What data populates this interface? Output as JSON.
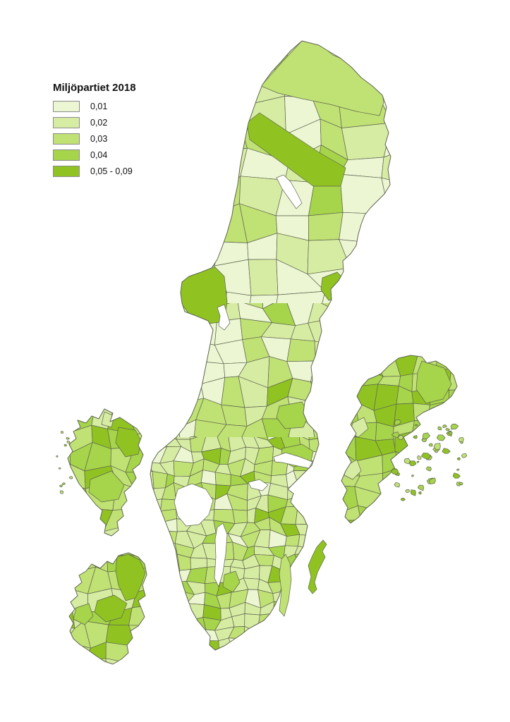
{
  "title": "Miljöpartiet 2018",
  "legend": {
    "swatch_border": "#8C8C8C",
    "items": [
      {
        "label": "0,01",
        "color": "#ECF6D3"
      },
      {
        "label": "0,02",
        "color": "#D7ECA3"
      },
      {
        "label": "0,03",
        "color": "#C0E174"
      },
      {
        "label": "0,04",
        "color": "#A6D44A"
      },
      {
        "label": "0,05 - 0,09",
        "color": "#90C322"
      }
    ]
  },
  "map": {
    "border_color": "#5E6550",
    "water_color": "#FFFFFF",
    "background": "#FFFFFF"
  }
}
